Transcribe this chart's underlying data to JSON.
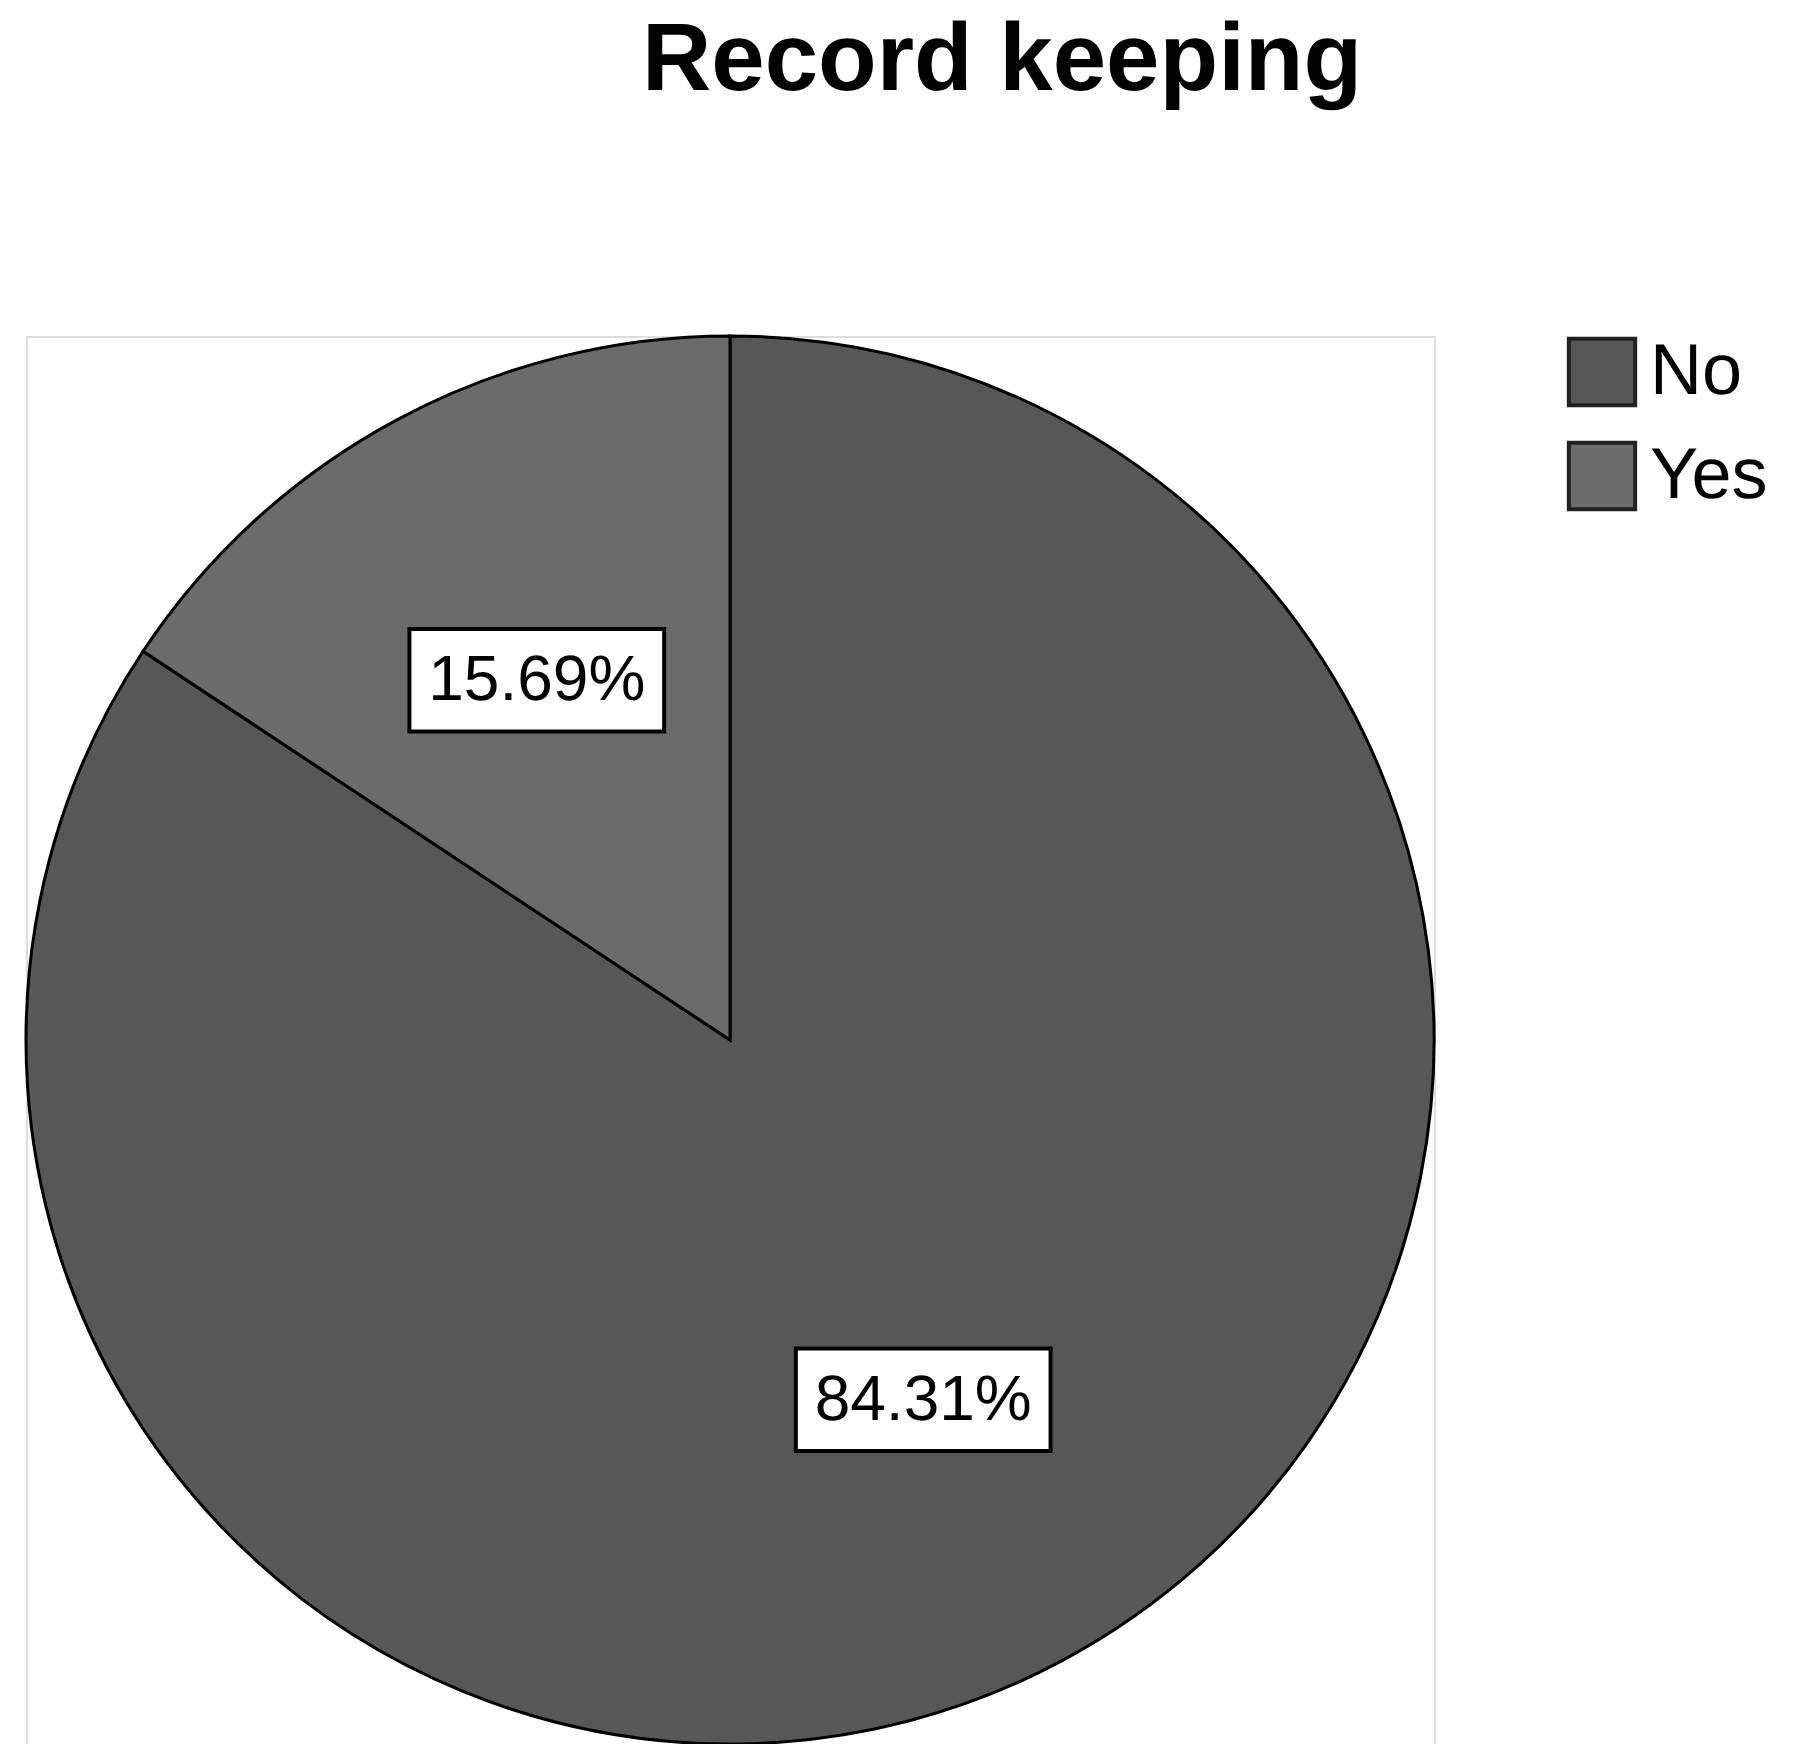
{
  "chart_data": {
    "type": "pie",
    "title": "Record keeping",
    "categories": [
      "No",
      "Yes"
    ],
    "values": [
      84.31,
      15.69
    ],
    "colors": [
      "#575757",
      "#6b6b6b"
    ],
    "value_labels": [
      "84.31%",
      "15.69%"
    ],
    "legend": "top right"
  }
}
